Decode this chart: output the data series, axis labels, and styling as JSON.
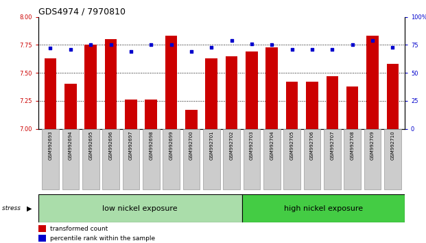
{
  "title": "GDS4974 / 7970810",
  "samples": [
    "GSM992693",
    "GSM992694",
    "GSM992695",
    "GSM992696",
    "GSM992697",
    "GSM992698",
    "GSM992699",
    "GSM992700",
    "GSM992701",
    "GSM992702",
    "GSM992703",
    "GSM992704",
    "GSM992705",
    "GSM992706",
    "GSM992707",
    "GSM992708",
    "GSM992709",
    "GSM992710"
  ],
  "transformed_count": [
    7.63,
    7.4,
    7.75,
    7.8,
    7.26,
    7.26,
    7.83,
    7.17,
    7.63,
    7.65,
    7.69,
    7.73,
    7.42,
    7.42,
    7.47,
    7.38,
    7.83,
    7.58
  ],
  "percentile_rank": [
    72,
    71,
    75,
    75,
    69,
    75,
    75,
    69,
    73,
    79,
    76,
    75,
    71,
    71,
    71,
    75,
    79,
    73
  ],
  "bar_color": "#cc0000",
  "dot_color": "#0000cc",
  "ylim_left": [
    7.0,
    8.0
  ],
  "ylim_right": [
    0,
    100
  ],
  "yticks_left": [
    7.0,
    7.25,
    7.5,
    7.75,
    8.0
  ],
  "yticks_right": [
    0,
    25,
    50,
    75,
    100
  ],
  "hlines": [
    7.25,
    7.5,
    7.75
  ],
  "low_nickel_count": 10,
  "high_nickel_count": 8,
  "group1_label": "low nickel exposure",
  "group2_label": "high nickel exposure",
  "stress_label": "stress",
  "legend_bar_label": "transformed count",
  "legend_dot_label": "percentile rank within the sample",
  "bar_color_hex": "#cc0000",
  "dot_color_hex": "#0000cc",
  "bar_width": 0.6,
  "title_fontsize": 9,
  "tick_fontsize": 6,
  "group_fontsize": 8
}
